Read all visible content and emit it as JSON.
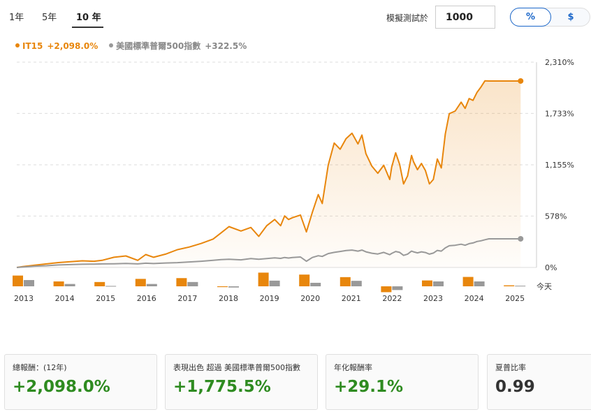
{
  "tabs": [
    {
      "label": "1年"
    },
    {
      "label": "5年"
    },
    {
      "label": "10 年"
    }
  ],
  "simulation": {
    "label": "模擬測試於",
    "value": "1000"
  },
  "toggle": {
    "percent": "%",
    "dollar": "$"
  },
  "legend": {
    "series1": {
      "name": "IT15",
      "value": "+2,098.0%",
      "color": "#e8860c"
    },
    "series2": {
      "name": "美國標準普爾500指數",
      "value": "+322.5%",
      "color": "#999999"
    }
  },
  "today_label": "今天",
  "cards": [
    {
      "label": "總報酬：(12年)",
      "value": "+2,098.0%"
    },
    {
      "label": "表現出色 超過 美國標準普爾500指數",
      "value": "+1,775.5%"
    },
    {
      "label": "年化報酬率",
      "value": "+29.1%"
    },
    {
      "label": "夏普比率",
      "value": "0.99"
    }
  ],
  "chart_data": {
    "type": "line",
    "y_ticks": [
      "2,310%",
      "1,733%",
      "1,155%",
      "578%",
      "0%"
    ],
    "y_tick_values": [
      2310,
      1733,
      1155,
      578,
      0
    ],
    "ylim": [
      0,
      2310
    ],
    "xlim": [
      2012.85,
      2025.95
    ],
    "grid": true,
    "x_tick_labels": [
      "2013",
      "2014",
      "2015",
      "2016",
      "2017",
      "2018",
      "2019",
      "2020",
      "2021",
      "2022",
      "2023",
      "2024",
      "2025"
    ],
    "series": [
      {
        "name": "IT15",
        "color": "#e8860c",
        "x": [
          2012.85,
          2013.0,
          2013.3,
          2013.6,
          2013.9,
          2014.2,
          2014.5,
          2014.8,
          2015.0,
          2015.3,
          2015.6,
          2015.9,
          2016.1,
          2016.3,
          2016.6,
          2016.9,
          2017.2,
          2017.5,
          2017.8,
          2018.0,
          2018.2,
          2018.5,
          2018.75,
          2018.95,
          2019.15,
          2019.35,
          2019.5,
          2019.6,
          2019.7,
          2019.8,
          2020.0,
          2020.15,
          2020.3,
          2020.45,
          2020.55,
          2020.7,
          2020.85,
          2021.0,
          2021.15,
          2021.3,
          2021.45,
          2021.55,
          2021.65,
          2021.8,
          2021.95,
          2022.1,
          2022.25,
          2022.3,
          2022.4,
          2022.5,
          2022.6,
          2022.7,
          2022.8,
          2022.85,
          2022.95,
          2023.05,
          2023.15,
          2023.25,
          2023.35,
          2023.45,
          2023.55,
          2023.65,
          2023.75,
          2023.9,
          2024.05,
          2024.15,
          2024.25,
          2024.35,
          2024.45,
          2024.55,
          2024.65,
          2024.75,
          2024.85,
          2024.95,
          2025.05,
          2025.15,
          2025.25,
          2025.35,
          2025.45,
          2025.55
        ],
        "values": [
          0,
          10,
          25,
          40,
          55,
          65,
          75,
          70,
          80,
          115,
          130,
          80,
          145,
          115,
          150,
          200,
          230,
          270,
          320,
          390,
          460,
          410,
          450,
          350,
          470,
          540,
          470,
          580,
          540,
          560,
          590,
          400,
          620,
          820,
          720,
          1150,
          1400,
          1330,
          1450,
          1510,
          1390,
          1490,
          1280,
          1140,
          1060,
          1150,
          990,
          1130,
          1290,
          1160,
          940,
          1030,
          1260,
          1190,
          1100,
          1170,
          1090,
          940,
          990,
          1220,
          1120,
          1500,
          1730,
          1760,
          1860,
          1790,
          1900,
          1880,
          1970,
          2030,
          2100,
          2098,
          2098,
          2098,
          2098,
          2098,
          2098,
          2098,
          2098,
          2098
        ],
        "end_value": 2098
      },
      {
        "name": "美國標準普爾500指數",
        "color": "#999999",
        "x": [
          2012.85,
          2013.0,
          2013.3,
          2013.6,
          2013.9,
          2014.2,
          2014.5,
          2014.8,
          2015.0,
          2015.3,
          2015.6,
          2015.9,
          2016.1,
          2016.3,
          2016.6,
          2016.9,
          2017.2,
          2017.5,
          2017.8,
          2018.0,
          2018.2,
          2018.5,
          2018.75,
          2018.95,
          2019.15,
          2019.35,
          2019.5,
          2019.6,
          2019.7,
          2019.8,
          2020.0,
          2020.15,
          2020.3,
          2020.45,
          2020.55,
          2020.7,
          2020.85,
          2021.0,
          2021.15,
          2021.3,
          2021.45,
          2021.55,
          2021.65,
          2021.8,
          2021.95,
          2022.1,
          2022.25,
          2022.3,
          2022.4,
          2022.5,
          2022.6,
          2022.7,
          2022.8,
          2022.85,
          2022.95,
          2023.05,
          2023.15,
          2023.25,
          2023.35,
          2023.45,
          2023.55,
          2023.65,
          2023.75,
          2023.9,
          2024.05,
          2024.15,
          2024.25,
          2024.35,
          2024.45,
          2024.55,
          2024.65,
          2024.75,
          2024.85,
          2024.95,
          2025.05,
          2025.15,
          2025.25,
          2025.35,
          2025.45,
          2025.55
        ],
        "values": [
          0,
          5,
          15,
          20,
          28,
          32,
          36,
          38,
          40,
          42,
          45,
          40,
          48,
          44,
          50,
          54,
          62,
          70,
          80,
          88,
          92,
          86,
          100,
          92,
          100,
          108,
          102,
          112,
          106,
          112,
          118,
          70,
          112,
          132,
          124,
          156,
          170,
          180,
          190,
          196,
          184,
          196,
          176,
          160,
          152,
          170,
          144,
          158,
          180,
          170,
          136,
          150,
          184,
          176,
          164,
          176,
          168,
          150,
          162,
          192,
          184,
          220,
          244,
          250,
          262,
          250,
          268,
          276,
          292,
          300,
          312,
          322.5,
          322.5,
          322.5,
          322.5,
          322.5,
          322.5,
          322.5,
          322.5,
          322.5
        ],
        "end_value": 322.5
      }
    ],
    "annual_bars": {
      "years": [
        2013,
        2014,
        2015,
        2016,
        2017,
        2018,
        2019,
        2020,
        2021,
        2022,
        2023,
        2024,
        2025
      ],
      "series1": [
        55,
        25,
        22,
        38,
        42,
        -4,
        70,
        60,
        47,
        -30,
        30,
        48,
        5
      ],
      "series2": [
        32,
        12,
        2,
        12,
        22,
        -6,
        29,
        18,
        28,
        -19,
        25,
        25,
        3
      ]
    }
  }
}
